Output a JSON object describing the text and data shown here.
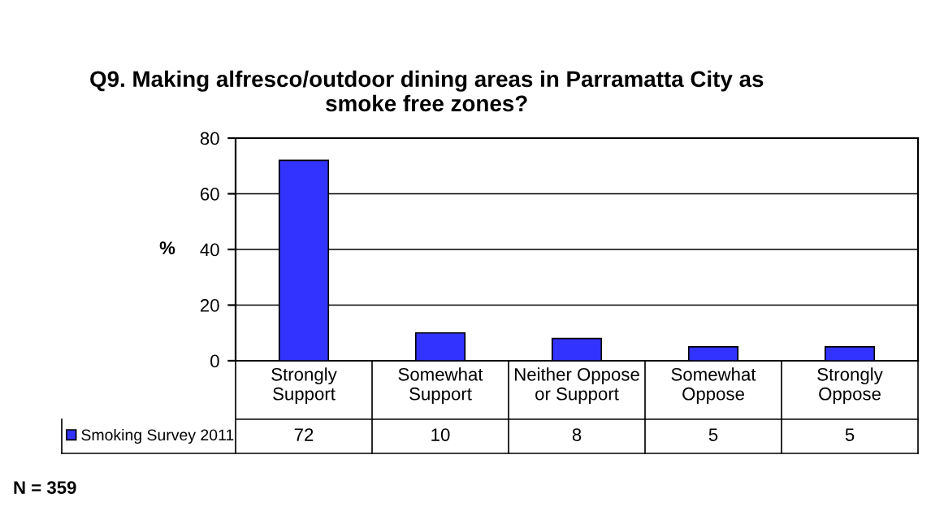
{
  "chart_data": {
    "type": "bar",
    "title": "Q9. Making alfresco/outdoor dining areas in Parramatta City as\nsmoke free zones?",
    "ylabel": "%",
    "categories": [
      "Strongly\nSupport",
      "Somewhat\nSupport",
      "Neither Oppose\nor Support",
      "Somewhat\nOppose",
      "Strongly\nOppose"
    ],
    "series": [
      {
        "name": "Smoking Survey 2011",
        "color": "#3333ff",
        "values": [
          72,
          10,
          8,
          5,
          5
        ]
      }
    ],
    "ylim": [
      0,
      80
    ],
    "yticks": [
      0,
      20,
      40,
      60,
      80
    ],
    "grid": "y",
    "legend": "bottom",
    "data_labels": true,
    "annotations": [
      "N = 359"
    ]
  }
}
